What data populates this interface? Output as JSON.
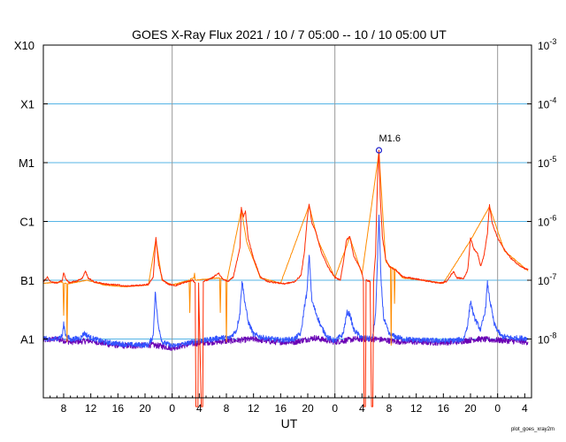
{
  "chart_data": {
    "type": "line",
    "title": "GOES X-Ray Flux   2021 / 10 /  7   05:00 -- 10 / 10   05:00   UT",
    "xlabel": "UT",
    "ylabel": "",
    "footer": "plot_goes_xray2m",
    "x_unit": "hours since 2021-10-07 05:00 UT",
    "xlim": [
      0,
      72
    ],
    "ylim_log10": [
      -9,
      -3
    ],
    "x_tick_labels": [
      {
        "x": 3,
        "label": "8"
      },
      {
        "x": 7,
        "label": "12"
      },
      {
        "x": 11,
        "label": "16"
      },
      {
        "x": 15,
        "label": "20"
      },
      {
        "x": 19,
        "label": "0"
      },
      {
        "x": 23,
        "label": "4"
      },
      {
        "x": 27,
        "label": "8"
      },
      {
        "x": 31,
        "label": "12"
      },
      {
        "x": 35,
        "label": "16"
      },
      {
        "x": 39,
        "label": "20"
      },
      {
        "x": 43,
        "label": "0"
      },
      {
        "x": 47,
        "label": "4"
      },
      {
        "x": 51,
        "label": "8"
      },
      {
        "x": 55,
        "label": "12"
      },
      {
        "x": 59,
        "label": "16"
      },
      {
        "x": 63,
        "label": "20"
      },
      {
        "x": 67,
        "label": "0"
      },
      {
        "x": 71,
        "label": "4"
      }
    ],
    "day_boundaries_x": [
      19,
      43,
      67
    ],
    "left_axis_classes": [
      {
        "label": "A1",
        "log10": -8
      },
      {
        "label": "B1",
        "log10": -7
      },
      {
        "label": "C1",
        "log10": -6
      },
      {
        "label": "M1",
        "log10": -5
      },
      {
        "label": "X1",
        "log10": -4
      },
      {
        "label": "X10",
        "log10": -3
      }
    ],
    "right_axis": [
      {
        "mantissa": "10",
        "exp": "-8",
        "log10": -8
      },
      {
        "mantissa": "10",
        "exp": "-7",
        "log10": -7
      },
      {
        "mantissa": "10",
        "exp": "-6",
        "log10": -6
      },
      {
        "mantissa": "10",
        "exp": "-5",
        "log10": -5
      },
      {
        "mantissa": "10",
        "exp": "-4",
        "log10": -4
      },
      {
        "mantissa": "10",
        "exp": "-3",
        "log10": -3
      }
    ],
    "grid": {
      "horizontal_at_log10": [
        -8,
        -7,
        -6,
        -5,
        -4
      ],
      "vertical_at_day_boundaries": true
    },
    "annotation": {
      "label": "M1.6",
      "x": 49.5,
      "log10": -4.79
    },
    "series": [
      {
        "color": "#ff2a00",
        "note": "long-wavelength flux (1-8 A), log10 W/m^2",
        "points": [
          [
            0,
            -7.03
          ],
          [
            0.6,
            -6.94
          ],
          [
            1.0,
            -7.02
          ],
          [
            2.0,
            -7.05
          ],
          [
            2.8,
            -7.0
          ],
          [
            3.0,
            -6.87
          ],
          [
            3.3,
            -6.98
          ],
          [
            3.8,
            -7.04
          ],
          [
            5.0,
            -7.01
          ],
          [
            5.8,
            -6.96
          ],
          [
            6.2,
            -6.84
          ],
          [
            6.6,
            -6.96
          ],
          [
            7.5,
            -7.03
          ],
          [
            9.5,
            -7.07
          ],
          [
            11.0,
            -7.08
          ],
          [
            12.0,
            -7.1
          ],
          [
            14.0,
            -7.09
          ],
          [
            15.5,
            -7.07
          ],
          [
            16.2,
            -6.95
          ],
          [
            16.6,
            -6.28
          ],
          [
            17.0,
            -6.72
          ],
          [
            17.6,
            -7.0
          ],
          [
            18.5,
            -7.07
          ],
          [
            19.5,
            -7.09
          ],
          [
            20.5,
            -7.05
          ],
          [
            22.0,
            -7.0
          ],
          [
            22.4,
            -7.04
          ],
          [
            22.5,
            -9.2
          ],
          [
            22.8,
            -9.2
          ],
          [
            22.9,
            -7.05
          ],
          [
            23.3,
            -9.2
          ],
          [
            23.5,
            -9.2
          ],
          [
            23.6,
            -7.02
          ],
          [
            24.8,
            -6.97
          ],
          [
            25.8,
            -6.88
          ],
          [
            26.5,
            -6.98
          ],
          [
            27.2,
            -7.02
          ],
          [
            28.0,
            -6.95
          ],
          [
            29.0,
            -6.45
          ],
          [
            29.2,
            -5.77
          ],
          [
            29.5,
            -5.92
          ],
          [
            29.8,
            -5.83
          ],
          [
            30.2,
            -6.28
          ],
          [
            31.0,
            -6.63
          ],
          [
            32.0,
            -6.94
          ],
          [
            33.0,
            -7.02
          ],
          [
            35.5,
            -7.06
          ],
          [
            37.0,
            -7.03
          ],
          [
            38.0,
            -6.92
          ],
          [
            38.5,
            -6.53
          ],
          [
            38.9,
            -5.98
          ],
          [
            39.2,
            -5.7
          ],
          [
            39.6,
            -6.02
          ],
          [
            40.2,
            -6.18
          ],
          [
            41.0,
            -6.52
          ],
          [
            42.0,
            -6.78
          ],
          [
            43.0,
            -6.95
          ],
          [
            43.8,
            -7.0
          ],
          [
            44.2,
            -6.73
          ],
          [
            44.7,
            -6.32
          ],
          [
            45.2,
            -6.25
          ],
          [
            45.8,
            -6.6
          ],
          [
            46.5,
            -6.74
          ],
          [
            47.0,
            -6.87
          ],
          [
            47.2,
            -7.0
          ],
          [
            47.3,
            -9.2
          ],
          [
            47.5,
            -9.2
          ],
          [
            47.6,
            -7.0
          ],
          [
            48.2,
            -7.02
          ],
          [
            48.4,
            -9.2
          ],
          [
            48.6,
            -9.2
          ],
          [
            48.7,
            -7.02
          ],
          [
            49.0,
            -6.55
          ],
          [
            49.3,
            -5.25
          ],
          [
            49.5,
            -4.79
          ],
          [
            49.7,
            -5.6
          ],
          [
            50.0,
            -6.26
          ],
          [
            50.5,
            -6.65
          ],
          [
            51.0,
            -6.76
          ],
          [
            52.0,
            -6.83
          ],
          [
            53.0,
            -6.94
          ],
          [
            55.0,
            -6.98
          ],
          [
            57.0,
            -7.02
          ],
          [
            58.5,
            -7.05
          ],
          [
            59.5,
            -7.02
          ],
          [
            60.0,
            -6.93
          ],
          [
            60.5,
            -6.85
          ],
          [
            61.0,
            -6.96
          ],
          [
            62.0,
            -6.97
          ],
          [
            62.6,
            -6.82
          ],
          [
            63.0,
            -6.28
          ],
          [
            63.5,
            -6.47
          ],
          [
            64.0,
            -6.53
          ],
          [
            64.5,
            -6.76
          ],
          [
            65.0,
            -6.57
          ],
          [
            65.5,
            -6.2
          ],
          [
            65.8,
            -5.72
          ],
          [
            66.2,
            -6.03
          ],
          [
            67.0,
            -6.28
          ],
          [
            68.0,
            -6.48
          ],
          [
            69.0,
            -6.63
          ],
          [
            70.0,
            -6.73
          ],
          [
            71.0,
            -6.8
          ],
          [
            71.5,
            -6.82
          ]
        ]
      },
      {
        "color": "#ff8c00",
        "note": "secondary long-wavelength channel (orange)",
        "points": [
          [
            0,
            -7.05
          ],
          [
            2.8,
            -7.03
          ],
          [
            2.9,
            -7.05
          ],
          [
            3.0,
            -7.6
          ],
          [
            3.1,
            -7.05
          ],
          [
            3.4,
            -7.05
          ],
          [
            3.5,
            -8.05
          ],
          [
            3.6,
            -7.06
          ],
          [
            6.5,
            -7.0
          ],
          [
            9.0,
            -7.08
          ],
          [
            12.0,
            -7.11
          ],
          [
            15.5,
            -7.08
          ],
          [
            16.6,
            -6.3
          ],
          [
            17.5,
            -7.0
          ],
          [
            19.0,
            -7.08
          ],
          [
            21.5,
            -7.0
          ],
          [
            21.6,
            -7.55
          ],
          [
            21.7,
            -6.98
          ],
          [
            22.2,
            -6.96
          ],
          [
            22.3,
            -6.88
          ],
          [
            22.4,
            -7.0
          ],
          [
            26.0,
            -6.96
          ],
          [
            26.1,
            -7.55
          ],
          [
            26.2,
            -6.97
          ],
          [
            26.9,
            -7.0
          ],
          [
            27.0,
            -8.05
          ],
          [
            27.1,
            -7.0
          ],
          [
            29.2,
            -5.8
          ],
          [
            30.0,
            -6.35
          ],
          [
            32.0,
            -6.96
          ],
          [
            35.0,
            -7.05
          ],
          [
            39.2,
            -5.73
          ],
          [
            40.5,
            -6.32
          ],
          [
            43.0,
            -6.96
          ],
          [
            45.2,
            -6.27
          ],
          [
            47.0,
            -6.9
          ],
          [
            49.5,
            -4.82
          ],
          [
            50.5,
            -6.68
          ],
          [
            51.2,
            -6.77
          ],
          [
            51.3,
            -8.1
          ],
          [
            51.4,
            -6.78
          ],
          [
            51.7,
            -6.8
          ],
          [
            51.8,
            -7.4
          ],
          [
            51.9,
            -6.81
          ],
          [
            53.0,
            -6.96
          ],
          [
            56.0,
            -7.0
          ],
          [
            59.0,
            -7.05
          ],
          [
            63.0,
            -6.32
          ],
          [
            65.8,
            -5.75
          ],
          [
            68.0,
            -6.5
          ],
          [
            71.5,
            -6.84
          ]
        ]
      },
      {
        "color": "#3355ff",
        "note": "short-wavelength flux (0.5-4 A), log10 W/m^2",
        "points": [
          [
            0,
            -7.98
          ],
          [
            1.0,
            -8.02
          ],
          [
            2.0,
            -7.99
          ],
          [
            2.8,
            -7.95
          ],
          [
            3.0,
            -7.75
          ],
          [
            3.3,
            -7.93
          ],
          [
            4.0,
            -8.01
          ],
          [
            5.5,
            -7.98
          ],
          [
            6.0,
            -7.9
          ],
          [
            7.0,
            -7.98
          ],
          [
            9.0,
            -8.05
          ],
          [
            11.0,
            -8.08
          ],
          [
            13.0,
            -8.1
          ],
          [
            15.5,
            -8.1
          ],
          [
            16.2,
            -7.95
          ],
          [
            16.5,
            -7.2
          ],
          [
            16.9,
            -7.72
          ],
          [
            17.5,
            -8.05
          ],
          [
            19.0,
            -8.12
          ],
          [
            21.0,
            -8.08
          ],
          [
            22.0,
            -8.05
          ],
          [
            24.0,
            -8.02
          ],
          [
            26.0,
            -7.98
          ],
          [
            27.5,
            -7.98
          ],
          [
            28.5,
            -7.85
          ],
          [
            29.0,
            -7.55
          ],
          [
            29.3,
            -7.0
          ],
          [
            29.7,
            -7.35
          ],
          [
            30.2,
            -7.7
          ],
          [
            31.0,
            -7.92
          ],
          [
            32.5,
            -7.98
          ],
          [
            35.0,
            -8.02
          ],
          [
            37.0,
            -8.0
          ],
          [
            38.0,
            -7.9
          ],
          [
            38.5,
            -7.45
          ],
          [
            38.9,
            -7.2
          ],
          [
            39.2,
            -6.55
          ],
          [
            39.6,
            -7.35
          ],
          [
            40.2,
            -7.55
          ],
          [
            41.0,
            -7.8
          ],
          [
            42.0,
            -7.98
          ],
          [
            43.0,
            -8.03
          ],
          [
            44.2,
            -7.92
          ],
          [
            44.8,
            -7.55
          ],
          [
            45.2,
            -7.58
          ],
          [
            45.8,
            -7.85
          ],
          [
            47.0,
            -7.98
          ],
          [
            48.5,
            -8.0
          ],
          [
            49.0,
            -7.6
          ],
          [
            49.3,
            -6.6
          ],
          [
            49.5,
            -5.9
          ],
          [
            49.8,
            -7.0
          ],
          [
            50.2,
            -7.65
          ],
          [
            51.0,
            -7.92
          ],
          [
            53.0,
            -8.0
          ],
          [
            56.0,
            -8.02
          ],
          [
            59.0,
            -8.03
          ],
          [
            61.0,
            -8.02
          ],
          [
            62.0,
            -8.0
          ],
          [
            62.6,
            -7.75
          ],
          [
            63.0,
            -7.35
          ],
          [
            63.5,
            -7.62
          ],
          [
            64.5,
            -7.85
          ],
          [
            65.2,
            -7.5
          ],
          [
            65.5,
            -7.05
          ],
          [
            65.8,
            -7.3
          ],
          [
            66.5,
            -7.75
          ],
          [
            67.5,
            -7.95
          ],
          [
            69.0,
            -7.98
          ],
          [
            71.5,
            -7.99
          ]
        ]
      },
      {
        "color": "#6a00b4",
        "note": "secondary short-wavelength channel (purple)",
        "points": [
          [
            0,
            -8.02
          ],
          [
            2.0,
            -8.0
          ],
          [
            4.0,
            -8.05
          ],
          [
            7.0,
            -8.03
          ],
          [
            10.0,
            -8.1
          ],
          [
            13.0,
            -8.12
          ],
          [
            16.0,
            -8.1
          ],
          [
            19.0,
            -8.15
          ],
          [
            22.0,
            -8.08
          ],
          [
            25.0,
            -8.05
          ],
          [
            28.0,
            -8.03
          ],
          [
            31.0,
            -8.0
          ],
          [
            34.0,
            -8.05
          ],
          [
            37.0,
            -8.05
          ],
          [
            40.0,
            -7.98
          ],
          [
            43.0,
            -8.05
          ],
          [
            46.0,
            -8.0
          ],
          [
            49.0,
            -8.0
          ],
          [
            52.0,
            -8.04
          ],
          [
            55.0,
            -8.05
          ],
          [
            58.0,
            -8.06
          ],
          [
            61.0,
            -8.05
          ],
          [
            64.0,
            -8.0
          ],
          [
            67.0,
            -8.02
          ],
          [
            70.0,
            -8.04
          ],
          [
            71.5,
            -8.05
          ]
        ]
      }
    ]
  }
}
